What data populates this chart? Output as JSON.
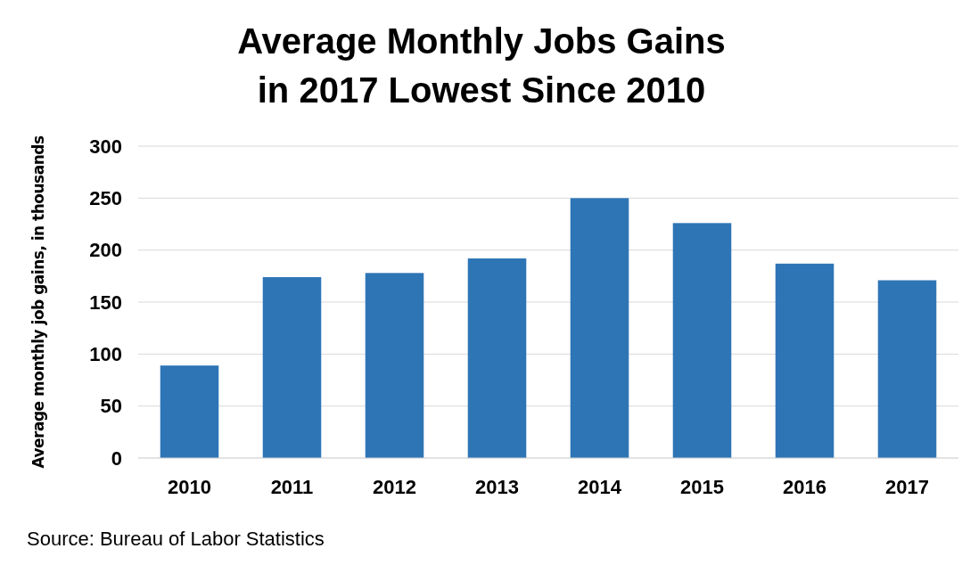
{
  "chart_data": {
    "type": "bar",
    "title": "Average Monthly Jobs Gains\nin 2017 Lowest Since 2010",
    "ylabel": "Average monthly job gains, in thousands",
    "categories": [
      "2010",
      "2011",
      "2012",
      "2013",
      "2014",
      "2015",
      "2016",
      "2017"
    ],
    "values": [
      89,
      174,
      178,
      192,
      250,
      226,
      187,
      171
    ],
    "color": "#2e75b6",
    "ylim": [
      0,
      300
    ],
    "yticks": [
      0,
      50,
      100,
      150,
      200,
      250,
      300
    ],
    "grid": "y",
    "annotations": [
      "Source: Bureau of Labor Statistics"
    ]
  }
}
